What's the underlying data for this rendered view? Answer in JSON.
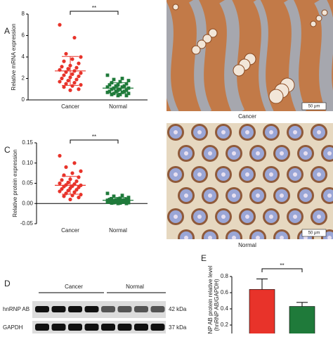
{
  "chart_data": [
    {
      "type": "scatter",
      "panel": "A",
      "ylabel": "Relative mRNA expression",
      "categories": [
        "Cancer",
        "Normal"
      ],
      "colors": [
        "#e8332a",
        "#1f7a3a"
      ],
      "values": [
        [
          7.0,
          5.8,
          4.3,
          4.0,
          3.8,
          3.6,
          3.4,
          3.2,
          3.1,
          3.0,
          2.9,
          2.8,
          2.7,
          2.6,
          2.5,
          2.4,
          2.3,
          2.2,
          2.1,
          2.0,
          1.9,
          1.8,
          1.7,
          1.6,
          1.5,
          1.4,
          1.3,
          1.2,
          1.0,
          0.9
        ],
        [
          2.3,
          2.0,
          1.9,
          1.8,
          1.7,
          1.6,
          1.5,
          1.4,
          1.4,
          1.3,
          1.3,
          1.2,
          1.2,
          1.1,
          1.1,
          1.0,
          1.0,
          0.9,
          0.9,
          0.8,
          0.8,
          0.8,
          0.7,
          0.7,
          0.6,
          0.6,
          0.5,
          0.5,
          0.4,
          0.4
        ]
      ],
      "means": [
        2.7,
        1.1
      ],
      "sds": [
        1.35,
        0.5
      ],
      "ylim": [
        0,
        8
      ],
      "yticks": [
        0,
        2,
        4,
        6,
        8
      ],
      "annotation": "**"
    },
    {
      "type": "scatter",
      "panel": "C",
      "ylabel": "Relative protein expression",
      "categories": [
        "Cancer",
        "Normal"
      ],
      "colors": [
        "#e8332a",
        "#1f7a3a"
      ],
      "values": [
        [
          0.118,
          0.1,
          0.09,
          0.08,
          0.075,
          0.07,
          0.065,
          0.06,
          0.058,
          0.055,
          0.052,
          0.05,
          0.048,
          0.046,
          0.045,
          0.043,
          0.042,
          0.04,
          0.038,
          0.036,
          0.034,
          0.032,
          0.03,
          0.028,
          0.025,
          0.022,
          0.02,
          0.018,
          0.015,
          0.01
        ],
        [
          0.025,
          0.02,
          0.018,
          0.015,
          0.013,
          0.012,
          0.011,
          0.01,
          0.01,
          0.009,
          0.009,
          0.008,
          0.008,
          0.007,
          0.007,
          0.006,
          0.006,
          0.005,
          0.005,
          0.005,
          0.004,
          0.004,
          0.003,
          0.003,
          0.002,
          0.002,
          0.001,
          0.001,
          0.0,
          0.0
        ]
      ],
      "means": [
        0.045,
        0.008
      ],
      "sds": [
        0.022,
        0.007
      ],
      "ylim": [
        -0.05,
        0.15
      ],
      "yticks": [
        -0.05,
        {
          "value": 0,
          "label": "0.00"
        },
        0.05,
        {
          "value": 0.1,
          "label": "0.10"
        },
        0.15
      ],
      "annotation": "**"
    },
    {
      "type": "bar",
      "panel": "E",
      "ylabel": [
        "hnRNP AB protein relative level",
        "(hnRNP AB/GAPDH)"
      ],
      "colors": [
        "#e8332a",
        "#1f7a3a"
      ],
      "values": [
        0.64,
        0.43
      ],
      "errors": [
        0.13,
        0.05
      ],
      "ylim": [
        0,
        0.8
      ],
      "yticks": [
        0.2,
        0.4,
        0.6,
        0.8
      ],
      "annotation": "**"
    }
  ],
  "images": [
    {
      "caption": "Cancer",
      "scale": "50 μm"
    },
    {
      "caption": "Normal",
      "scale": "50 μm"
    }
  ],
  "blot": {
    "panel": "D",
    "groups": [
      "Cancer",
      "Normal"
    ],
    "rows": [
      {
        "name": "hnRNP AB",
        "size": "42 kDa"
      },
      {
        "name": "GAPDH",
        "size": "37 kDa"
      }
    ]
  }
}
